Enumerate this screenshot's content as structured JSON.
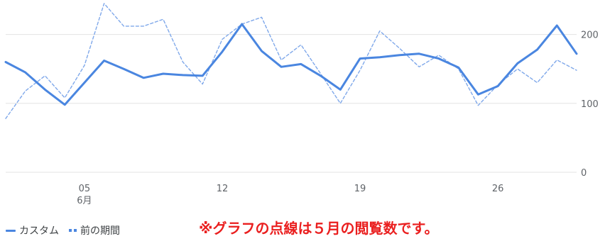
{
  "chart_data": {
    "type": "line",
    "x_ticks": [
      {
        "day": 5,
        "label": "05",
        "sublabel": "6月"
      },
      {
        "day": 12,
        "label": "12",
        "sublabel": ""
      },
      {
        "day": 19,
        "label": "19",
        "sublabel": ""
      },
      {
        "day": 26,
        "label": "26",
        "sublabel": ""
      }
    ],
    "y_ticks": [
      {
        "value": 0,
        "label": "0"
      },
      {
        "value": 100,
        "label": "100"
      },
      {
        "value": 200,
        "label": "200"
      }
    ],
    "ylim": [
      0,
      250
    ],
    "xlim": [
      1,
      30
    ],
    "series": [
      {
        "name": "カスタム",
        "style": "solid",
        "color": "#4a86e0",
        "x": [
          1,
          2,
          3,
          4,
          5,
          6,
          7,
          8,
          9,
          10,
          11,
          12,
          13,
          14,
          15,
          16,
          17,
          18,
          19,
          20,
          21,
          22,
          23,
          24,
          25,
          26,
          27,
          28,
          29,
          30
        ],
        "values": [
          160,
          145,
          120,
          98,
          130,
          162,
          150,
          137,
          143,
          141,
          140,
          175,
          215,
          176,
          153,
          157,
          140,
          120,
          165,
          167,
          170,
          172,
          165,
          152,
          113,
          125,
          158,
          178,
          213,
          172
        ]
      },
      {
        "name": "前の期間",
        "style": "dotted",
        "color": "#7fa8ea",
        "x": [
          1,
          2,
          3,
          4,
          5,
          6,
          7,
          8,
          9,
          10,
          11,
          12,
          13,
          14,
          15,
          16,
          17,
          18,
          19,
          20,
          21,
          22,
          23,
          24,
          25,
          26,
          27,
          28,
          29,
          30
        ],
        "values": [
          78,
          118,
          140,
          108,
          155,
          245,
          212,
          212,
          222,
          160,
          128,
          193,
          215,
          225,
          163,
          185,
          143,
          100,
          148,
          205,
          180,
          153,
          170,
          150,
          97,
          127,
          150,
          130,
          163,
          148
        ]
      }
    ]
  },
  "legend": {
    "custom_label": "カスタム",
    "previous_label": "前の期間"
  },
  "note": "※グラフの点線は５月の閲覧数です。"
}
